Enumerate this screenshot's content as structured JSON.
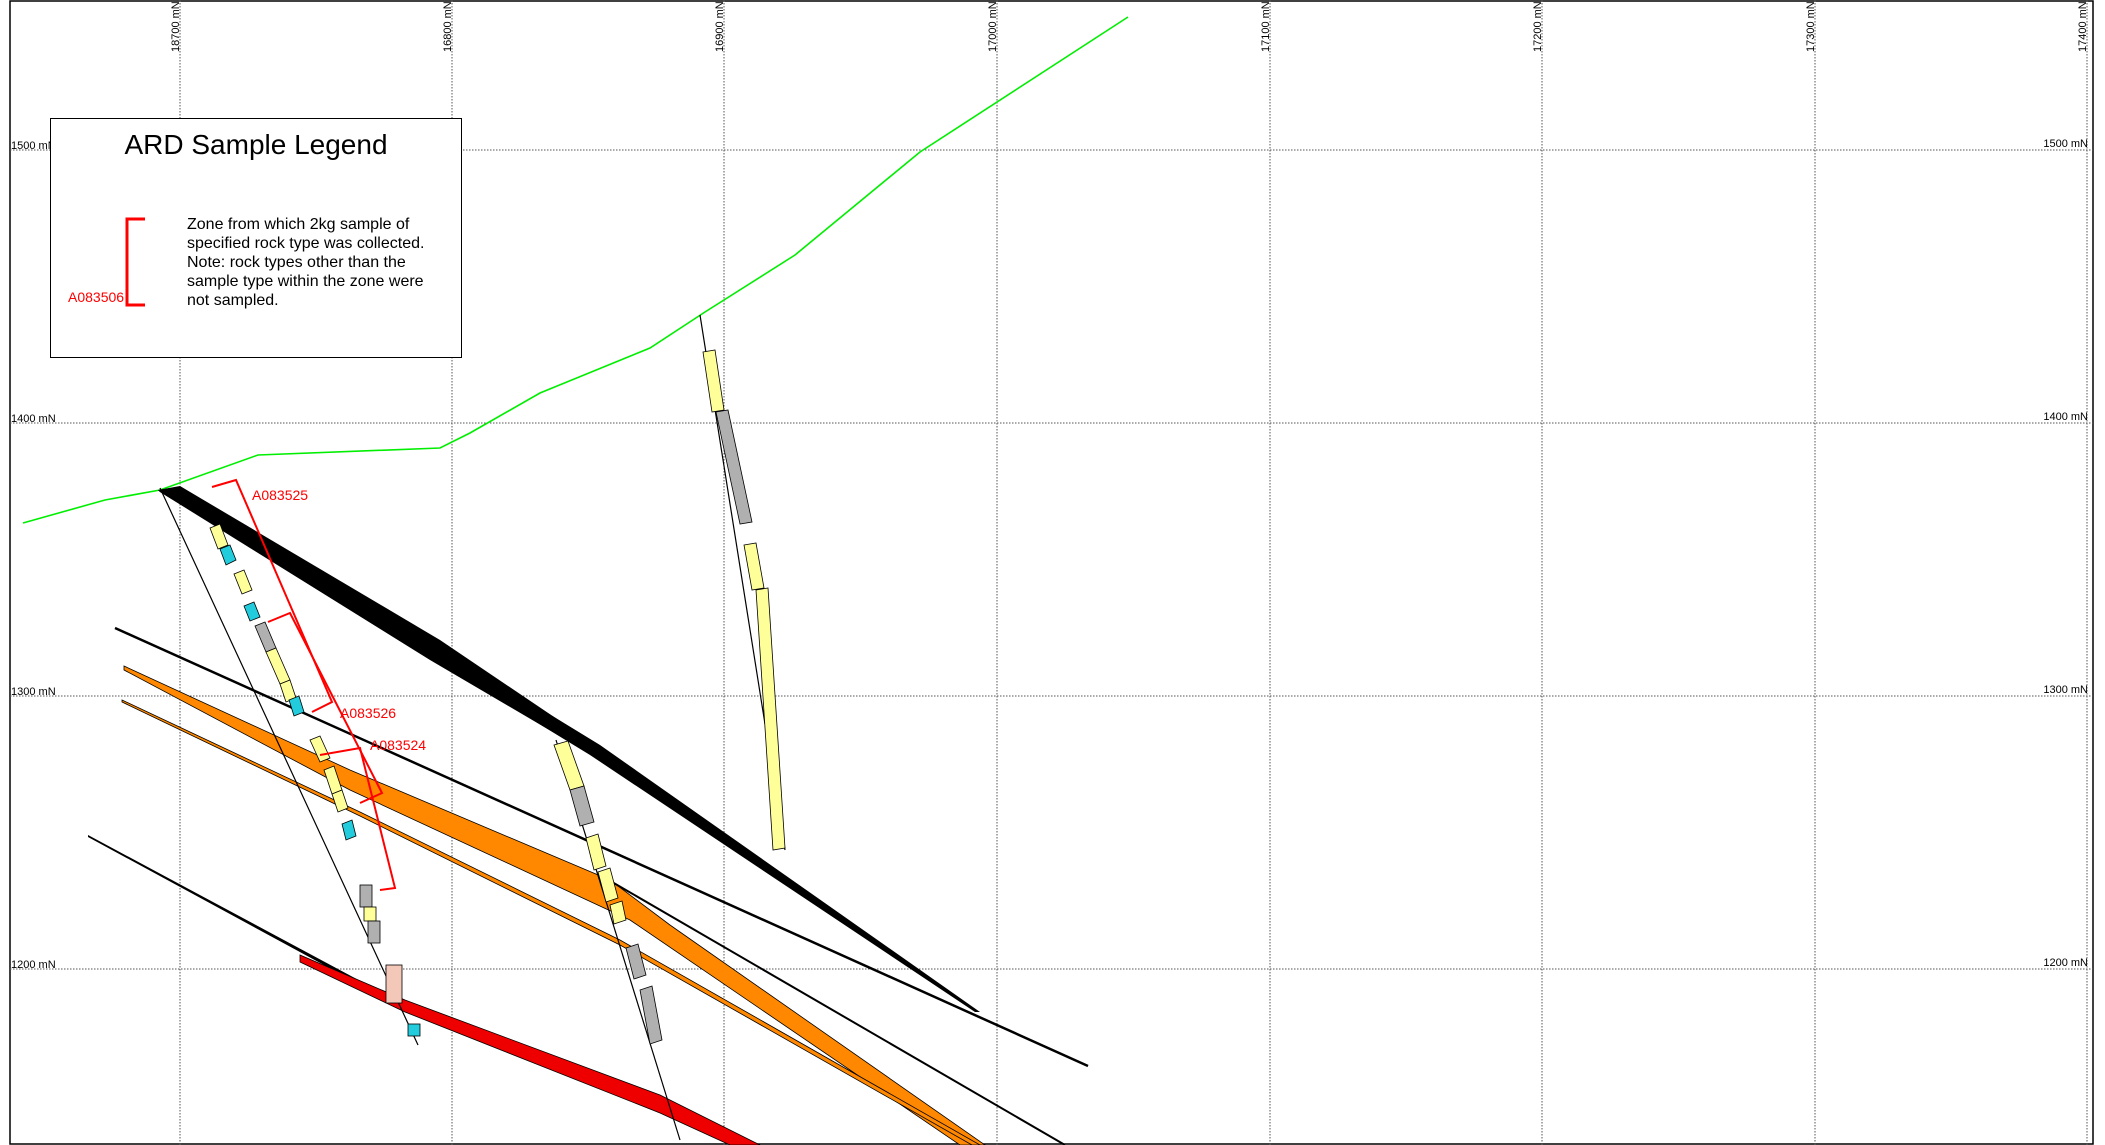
{
  "grid": {
    "northings": [
      {
        "label": "18700 mN"
      },
      {
        "label": "16800 mN"
      },
      {
        "label": "16900 mN"
      },
      {
        "label": "17000 mN"
      },
      {
        "label": "17100 mN"
      },
      {
        "label": "17200 mN"
      },
      {
        "label": "17300 mN"
      },
      {
        "label": "17400 mN"
      }
    ],
    "elevations": [
      {
        "label": "1500 mN"
      },
      {
        "label": "1400 mN"
      },
      {
        "label": "1300 mN"
      },
      {
        "label": "1200 mN"
      }
    ]
  },
  "legend": {
    "title": "ARD Sample Legend",
    "description": "Zone from which 2kg sample of specified rock type was collected. Note: rock types other than the sample type within the zone were not sampled.",
    "example_id": "A083506"
  },
  "samples": [
    {
      "id": "A083525"
    },
    {
      "id": "A083526"
    },
    {
      "id": "A083524"
    }
  ],
  "colors": {
    "topography": "#00ee00",
    "sample_zone": "#ff0000",
    "fault_black": "#000000",
    "unit_orange": "#ff8800",
    "unit_red": "#ee0000",
    "core_yellow": "#ffff99",
    "core_grey": "#b0b0b0",
    "core_cyan": "#22ccdd",
    "core_pink": "#f4c8b8"
  }
}
